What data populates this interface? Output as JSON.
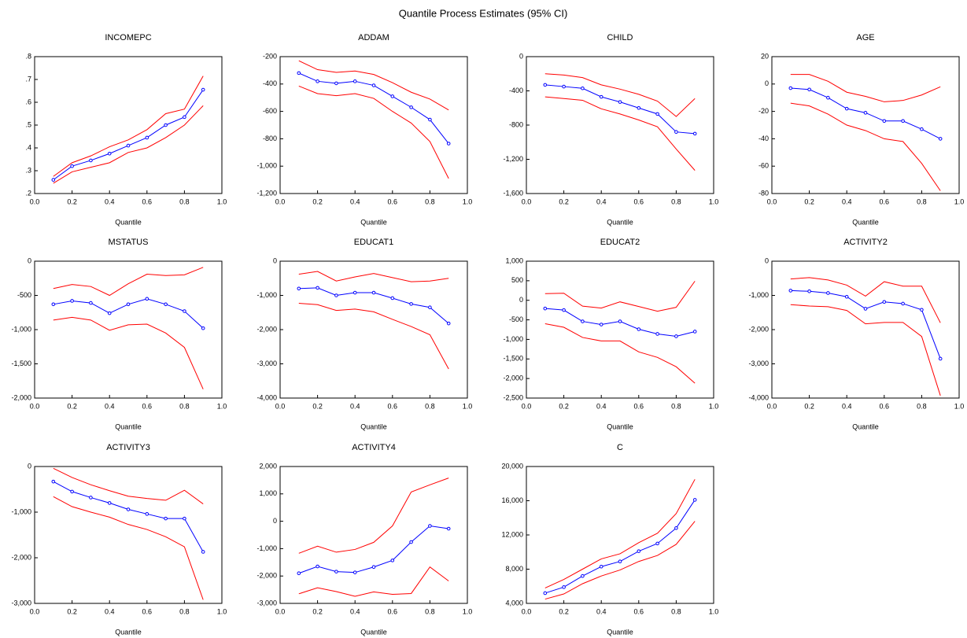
{
  "title": "Quantile Process Estimates (95% CI)",
  "chart_data": [
    {
      "type": "line",
      "title": "INCOMEPC",
      "xlabel": "Quantile",
      "x": [
        0.1,
        0.2,
        0.3,
        0.4,
        0.5,
        0.6,
        0.7,
        0.8,
        0.9
      ],
      "xlim": [
        0,
        1
      ],
      "xticks": [
        {
          "value": 0,
          "label": "0.0"
        },
        0.2,
        0.4,
        0.6,
        0.8,
        {
          "value": 1,
          "label": "1.0"
        }
      ],
      "ylim": [
        0.2,
        0.8
      ],
      "yticks": [
        {
          "value": 0.2,
          "label": ".2"
        },
        {
          "value": 0.3,
          "label": ".3"
        },
        {
          "value": 0.4,
          "label": ".4"
        },
        {
          "value": 0.5,
          "label": ".5"
        },
        {
          "value": 0.6,
          "label": ".6"
        },
        {
          "value": 0.7,
          "label": ".7"
        },
        {
          "value": 0.8,
          "label": ".8"
        }
      ],
      "series": [
        {
          "color": "#0000ff",
          "marker": true,
          "values": [
            0.26,
            0.32,
            0.345,
            0.375,
            0.41,
            0.445,
            0.5,
            0.535,
            0.655
          ]
        },
        {
          "color": "#ff0000",
          "values": [
            0.275,
            0.335,
            0.365,
            0.405,
            0.435,
            0.48,
            0.55,
            0.57,
            0.715
          ]
        },
        {
          "color": "#ff0000",
          "values": [
            0.245,
            0.295,
            0.315,
            0.335,
            0.38,
            0.4,
            0.445,
            0.5,
            0.585
          ]
        }
      ]
    },
    {
      "type": "line",
      "title": "ADDAM",
      "xlabel": "Quantile",
      "x": [
        0.1,
        0.2,
        0.3,
        0.4,
        0.5,
        0.6,
        0.7,
        0.8,
        0.9
      ],
      "xlim": [
        0,
        1
      ],
      "xticks": [
        {
          "value": 0,
          "label": "0.0"
        },
        0.2,
        0.4,
        0.6,
        0.8,
        {
          "value": 1,
          "label": "1.0"
        }
      ],
      "ylim": [
        -1200,
        -200
      ],
      "yticks": [
        {
          "value": -1200,
          "label": "-1,200"
        },
        {
          "value": -1000,
          "label": "-1,000"
        },
        -800,
        -600,
        -400,
        -200
      ],
      "series": [
        {
          "color": "#0000ff",
          "marker": true,
          "values": [
            -320,
            -380,
            -395,
            -380,
            -410,
            -490,
            -570,
            -660,
            -835
          ]
        },
        {
          "color": "#ff0000",
          "values": [
            -230,
            -295,
            -315,
            -305,
            -330,
            -390,
            -460,
            -510,
            -590
          ]
        },
        {
          "color": "#ff0000",
          "values": [
            -415,
            -470,
            -485,
            -470,
            -505,
            -600,
            -685,
            -820,
            -1090
          ]
        }
      ]
    },
    {
      "type": "line",
      "title": "CHILD",
      "xlabel": "Quantile",
      "x": [
        0.1,
        0.2,
        0.3,
        0.4,
        0.5,
        0.6,
        0.7,
        0.8,
        0.9
      ],
      "xlim": [
        0,
        1
      ],
      "xticks": [
        {
          "value": 0,
          "label": "0.0"
        },
        0.2,
        0.4,
        0.6,
        0.8,
        {
          "value": 1,
          "label": "1.0"
        }
      ],
      "ylim": [
        -1600,
        0
      ],
      "yticks": [
        {
          "value": -1600,
          "label": "-1,600"
        },
        {
          "value": -1200,
          "label": "-1,200"
        },
        -800,
        -400,
        0
      ],
      "series": [
        {
          "color": "#0000ff",
          "marker": true,
          "values": [
            -330,
            -350,
            -370,
            -470,
            -530,
            -600,
            -670,
            -880,
            -900
          ]
        },
        {
          "color": "#ff0000",
          "values": [
            -200,
            -215,
            -245,
            -330,
            -380,
            -440,
            -520,
            -700,
            -490
          ]
        },
        {
          "color": "#ff0000",
          "values": [
            -470,
            -490,
            -510,
            -610,
            -670,
            -740,
            -820,
            -1080,
            -1330
          ]
        }
      ]
    },
    {
      "type": "line",
      "title": "AGE",
      "xlabel": "Quantile",
      "x": [
        0.1,
        0.2,
        0.3,
        0.4,
        0.5,
        0.6,
        0.7,
        0.8,
        0.9
      ],
      "xlim": [
        0,
        1
      ],
      "xticks": [
        {
          "value": 0,
          "label": "0.0"
        },
        0.2,
        0.4,
        0.6,
        0.8,
        {
          "value": 1,
          "label": "1.0"
        }
      ],
      "ylim": [
        -80,
        20
      ],
      "yticks": [
        -80,
        -60,
        -40,
        -20,
        0,
        20
      ],
      "series": [
        {
          "color": "#0000ff",
          "marker": true,
          "values": [
            -3,
            -4,
            -10,
            -18,
            -21,
            -27,
            -27,
            -33,
            -40
          ]
        },
        {
          "color": "#ff0000",
          "values": [
            7,
            7,
            2,
            -6,
            -9,
            -13,
            -12,
            -8,
            -2
          ]
        },
        {
          "color": "#ff0000",
          "values": [
            -14,
            -16,
            -22,
            -30,
            -34,
            -40,
            -42,
            -58,
            -78
          ]
        }
      ]
    },
    {
      "type": "line",
      "title": "MSTATUS",
      "xlabel": "Quantile",
      "x": [
        0.1,
        0.2,
        0.3,
        0.4,
        0.5,
        0.6,
        0.7,
        0.8,
        0.9
      ],
      "xlim": [
        0,
        1
      ],
      "xticks": [
        {
          "value": 0,
          "label": "0.0"
        },
        0.2,
        0.4,
        0.6,
        0.8,
        {
          "value": 1,
          "label": "1.0"
        }
      ],
      "ylim": [
        -2000,
        0
      ],
      "yticks": [
        {
          "value": -2000,
          "label": "-2,000"
        },
        {
          "value": -1500,
          "label": "-1,500"
        },
        {
          "value": -1000,
          "label": "-1,000"
        },
        -500,
        0
      ],
      "series": [
        {
          "color": "#0000ff",
          "marker": true,
          "values": [
            -630,
            -580,
            -610,
            -760,
            -630,
            -550,
            -630,
            -730,
            -980
          ]
        },
        {
          "color": "#ff0000",
          "values": [
            -400,
            -340,
            -370,
            -500,
            -330,
            -190,
            -210,
            -200,
            -90
          ]
        },
        {
          "color": "#ff0000",
          "values": [
            -860,
            -820,
            -860,
            -1010,
            -930,
            -920,
            -1050,
            -1260,
            -1870
          ]
        }
      ]
    },
    {
      "type": "line",
      "title": "EDUCAT1",
      "xlabel": "Quantile",
      "x": [
        0.1,
        0.2,
        0.3,
        0.4,
        0.5,
        0.6,
        0.7,
        0.8,
        0.9
      ],
      "xlim": [
        0,
        1
      ],
      "xticks": [
        {
          "value": 0,
          "label": "0.0"
        },
        0.2,
        0.4,
        0.6,
        0.8,
        {
          "value": 1,
          "label": "1.0"
        }
      ],
      "ylim": [
        -4000,
        0
      ],
      "yticks": [
        {
          "value": -4000,
          "label": "-4,000"
        },
        {
          "value": -3000,
          "label": "-3,000"
        },
        {
          "value": -2000,
          "label": "-2,000"
        },
        {
          "value": -1000,
          "label": "-1,000"
        },
        0
      ],
      "series": [
        {
          "color": "#0000ff",
          "marker": true,
          "values": [
            -800,
            -780,
            -1000,
            -920,
            -920,
            -1080,
            -1250,
            -1350,
            -1820
          ]
        },
        {
          "color": "#ff0000",
          "values": [
            -380,
            -300,
            -580,
            -460,
            -360,
            -480,
            -600,
            -580,
            -500
          ]
        },
        {
          "color": "#ff0000",
          "values": [
            -1230,
            -1270,
            -1440,
            -1400,
            -1480,
            -1700,
            -1910,
            -2150,
            -3150
          ]
        }
      ]
    },
    {
      "type": "line",
      "title": "EDUCAT2",
      "xlabel": "Quantile",
      "x": [
        0.1,
        0.2,
        0.3,
        0.4,
        0.5,
        0.6,
        0.7,
        0.8,
        0.9
      ],
      "xlim": [
        0,
        1
      ],
      "xticks": [
        {
          "value": 0,
          "label": "0.0"
        },
        0.2,
        0.4,
        0.6,
        0.8,
        {
          "value": 1,
          "label": "1.0"
        }
      ],
      "ylim": [
        -2500,
        1000
      ],
      "yticks": [
        {
          "value": -2500,
          "label": "-2,500"
        },
        {
          "value": -2000,
          "label": "-2,000"
        },
        {
          "value": -1500,
          "label": "-1,500"
        },
        {
          "value": -1000,
          "label": "-1,000"
        },
        -500,
        0,
        500,
        {
          "value": 1000,
          "label": "1,000"
        }
      ],
      "series": [
        {
          "color": "#0000ff",
          "marker": true,
          "values": [
            -210,
            -250,
            -540,
            -620,
            -540,
            -740,
            -860,
            -920,
            -800
          ]
        },
        {
          "color": "#ff0000",
          "values": [
            170,
            180,
            -150,
            -200,
            -40,
            -160,
            -280,
            -180,
            490
          ]
        },
        {
          "color": "#ff0000",
          "values": [
            -600,
            -690,
            -950,
            -1040,
            -1040,
            -1320,
            -1460,
            -1700,
            -2120
          ]
        }
      ]
    },
    {
      "type": "line",
      "title": "ACTIVITY2",
      "xlabel": "Quantile",
      "x": [
        0.1,
        0.2,
        0.3,
        0.4,
        0.5,
        0.6,
        0.7,
        0.8,
        0.9
      ],
      "xlim": [
        0,
        1
      ],
      "xticks": [
        {
          "value": 0,
          "label": "0.0"
        },
        0.2,
        0.4,
        0.6,
        0.8,
        {
          "value": 1,
          "label": "1.0"
        }
      ],
      "ylim": [
        -4000,
        0
      ],
      "yticks": [
        {
          "value": -4000,
          "label": "-4,000"
        },
        {
          "value": -3000,
          "label": "-3,000"
        },
        {
          "value": -2000,
          "label": "-2,000"
        },
        {
          "value": -1000,
          "label": "-1,000"
        },
        0
      ],
      "series": [
        {
          "color": "#0000ff",
          "marker": true,
          "values": [
            -860,
            -880,
            -930,
            -1040,
            -1390,
            -1190,
            -1240,
            -1420,
            -2850
          ]
        },
        {
          "color": "#ff0000",
          "values": [
            -520,
            -480,
            -550,
            -700,
            -1020,
            -600,
            -730,
            -730,
            -1800
          ]
        },
        {
          "color": "#ff0000",
          "values": [
            -1270,
            -1310,
            -1330,
            -1440,
            -1830,
            -1790,
            -1790,
            -2200,
            -3930
          ]
        }
      ]
    },
    {
      "type": "line",
      "title": "ACTIVITY3",
      "xlabel": "Quantile",
      "x": [
        0.1,
        0.2,
        0.3,
        0.4,
        0.5,
        0.6,
        0.7,
        0.8,
        0.9
      ],
      "xlim": [
        0,
        1
      ],
      "xticks": [
        {
          "value": 0,
          "label": "0.0"
        },
        0.2,
        0.4,
        0.6,
        0.8,
        {
          "value": 1,
          "label": "1.0"
        }
      ],
      "ylim": [
        -3000,
        0
      ],
      "yticks": [
        {
          "value": -3000,
          "label": "-3,000"
        },
        {
          "value": -2000,
          "label": "-2,000"
        },
        {
          "value": -1000,
          "label": "-1,000"
        },
        0
      ],
      "series": [
        {
          "color": "#0000ff",
          "marker": true,
          "values": [
            -330,
            -550,
            -680,
            -800,
            -940,
            -1040,
            -1140,
            -1140,
            -1870
          ]
        },
        {
          "color": "#ff0000",
          "values": [
            -40,
            -240,
            -400,
            -530,
            -650,
            -700,
            -740,
            -520,
            -820
          ]
        },
        {
          "color": "#ff0000",
          "values": [
            -660,
            -880,
            -1000,
            -1110,
            -1270,
            -1380,
            -1540,
            -1760,
            -2920
          ]
        }
      ]
    },
    {
      "type": "line",
      "title": "ACTIVITY4",
      "xlabel": "Quantile",
      "x": [
        0.1,
        0.2,
        0.3,
        0.4,
        0.5,
        0.6,
        0.7,
        0.8,
        0.9
      ],
      "xlim": [
        0,
        1
      ],
      "xticks": [
        {
          "value": 0,
          "label": "0.0"
        },
        0.2,
        0.4,
        0.6,
        0.8,
        {
          "value": 1,
          "label": "1.0"
        }
      ],
      "ylim": [
        -3000,
        2000
      ],
      "yticks": [
        {
          "value": -3000,
          "label": "-3,000"
        },
        {
          "value": -2000,
          "label": "-2,000"
        },
        {
          "value": -1000,
          "label": "-1,000"
        },
        0,
        {
          "value": 1000,
          "label": "1,000"
        },
        {
          "value": 2000,
          "label": "2,000"
        }
      ],
      "series": [
        {
          "color": "#0000ff",
          "marker": true,
          "values": [
            -1900,
            -1650,
            -1840,
            -1870,
            -1670,
            -1430,
            -760,
            -170,
            -270
          ]
        },
        {
          "color": "#ff0000",
          "values": [
            -1170,
            -910,
            -1130,
            -1030,
            -770,
            -170,
            1070,
            1330,
            1580
          ]
        },
        {
          "color": "#ff0000",
          "values": [
            -2650,
            -2430,
            -2570,
            -2740,
            -2580,
            -2670,
            -2640,
            -1670,
            -2180
          ]
        }
      ]
    },
    {
      "type": "line",
      "title": "C",
      "xlabel": "Quantile",
      "x": [
        0.1,
        0.2,
        0.3,
        0.4,
        0.5,
        0.6,
        0.7,
        0.8,
        0.9
      ],
      "xlim": [
        0,
        1
      ],
      "xticks": [
        {
          "value": 0,
          "label": "0.0"
        },
        0.2,
        0.4,
        0.6,
        0.8,
        {
          "value": 1,
          "label": "1.0"
        }
      ],
      "ylim": [
        4000,
        20000
      ],
      "yticks": [
        {
          "value": 4000,
          "label": "4,000"
        },
        {
          "value": 8000,
          "label": "8,000"
        },
        {
          "value": 12000,
          "label": "12,000"
        },
        {
          "value": 16000,
          "label": "16,000"
        },
        {
          "value": 20000,
          "label": "20,000"
        }
      ],
      "series": [
        {
          "color": "#0000ff",
          "marker": true,
          "values": [
            5200,
            5900,
            7200,
            8300,
            8900,
            10100,
            11000,
            12800,
            16100
          ]
        },
        {
          "color": "#ff0000",
          "values": [
            5800,
            6800,
            8000,
            9200,
            9800,
            11100,
            12200,
            14500,
            18500
          ]
        },
        {
          "color": "#ff0000",
          "values": [
            4500,
            5100,
            6300,
            7200,
            7900,
            8900,
            9600,
            10900,
            13600
          ]
        }
      ]
    }
  ]
}
